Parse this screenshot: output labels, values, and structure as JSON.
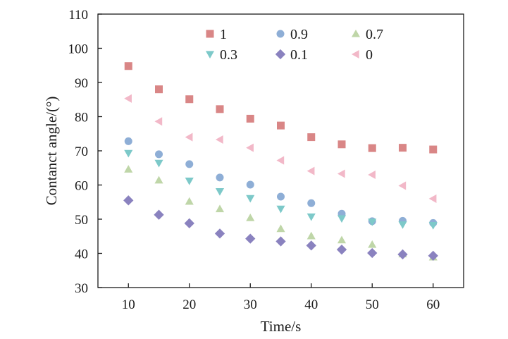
{
  "chart_data": {
    "type": "scatter",
    "title": "",
    "xlabel": "Time/s",
    "ylabel": "Contanct angle/(°)",
    "xlim": [
      5,
      65
    ],
    "ylim": [
      30,
      110
    ],
    "xticks": [
      10,
      20,
      30,
      40,
      50,
      60
    ],
    "yticks": [
      30,
      40,
      50,
      60,
      70,
      80,
      90,
      100,
      110
    ],
    "grid": false,
    "legend_position": "top, inside plot area, two rows",
    "x": [
      10,
      15,
      20,
      25,
      30,
      35,
      40,
      45,
      50,
      55,
      60
    ],
    "series": [
      {
        "name": "1",
        "marker": "square",
        "color": "#d98686",
        "values": [
          94.8,
          88.0,
          85.1,
          82.2,
          79.4,
          77.4,
          74.0,
          71.9,
          70.8,
          70.9,
          70.4
        ]
      },
      {
        "name": "0.9",
        "marker": "circle",
        "color": "#8eaed6",
        "values": [
          72.8,
          69.0,
          66.1,
          62.2,
          60.1,
          56.6,
          54.7,
          51.6,
          49.4,
          49.5,
          48.9
        ]
      },
      {
        "name": "0.7",
        "marker": "triangle-up",
        "color": "#bfd6a8",
        "values": [
          64.6,
          61.4,
          55.2,
          53.0,
          50.4,
          47.2,
          45.1,
          43.9,
          42.6,
          39.8,
          38.9
        ]
      },
      {
        "name": "0.3",
        "marker": "triangle-down",
        "color": "#7dc9c9",
        "values": [
          69.3,
          66.4,
          61.2,
          58.1,
          56.1,
          53.0,
          50.7,
          50.2,
          49.2,
          48.4,
          48.2
        ]
      },
      {
        "name": "0.1",
        "marker": "diamond",
        "color": "#8a82bf",
        "values": [
          55.5,
          51.3,
          48.8,
          45.8,
          44.3,
          43.5,
          42.3,
          41.1,
          40.1,
          39.7,
          39.3
        ]
      },
      {
        "name": "0",
        "marker": "triangle-left",
        "color": "#f2b8c8",
        "values": [
          85.3,
          78.6,
          74.0,
          73.3,
          70.9,
          67.2,
          64.1,
          63.3,
          63.0,
          59.8,
          56.0
        ]
      }
    ]
  }
}
